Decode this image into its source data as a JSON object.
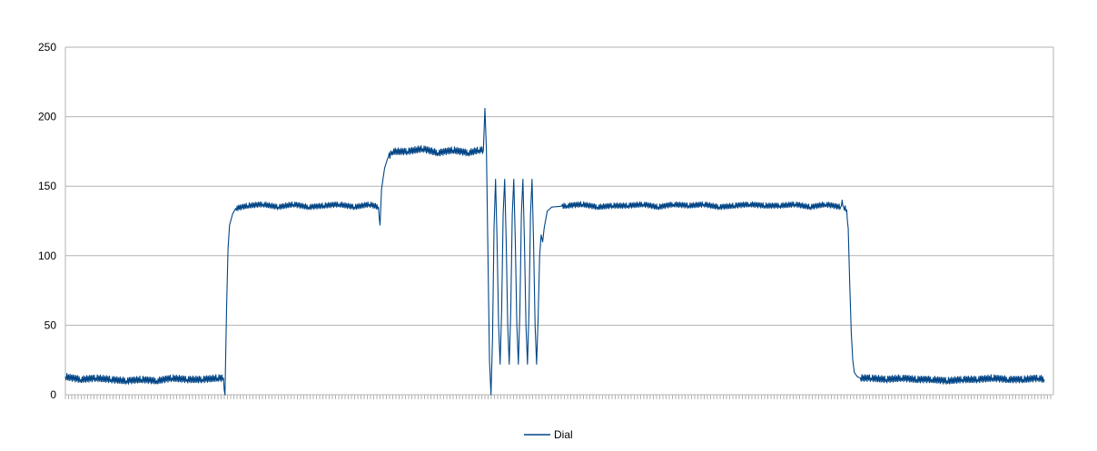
{
  "chart_data": {
    "type": "line",
    "title": "",
    "xlabel": "",
    "ylabel": "",
    "ylim": [
      0,
      250
    ],
    "yticks": [
      0,
      50,
      100,
      150,
      200,
      250
    ],
    "grid": true,
    "legend_position": "bottom",
    "series": [
      {
        "name": "Dial",
        "color": "#004586",
        "segments": [
          {
            "from": 0,
            "to": 105,
            "level": 11,
            "noise": 2.5
          },
          {
            "from": 105,
            "to": 112,
            "ramp_to": 132
          },
          {
            "from": 112,
            "to": 207,
            "level": 136,
            "noise": 2.0
          },
          {
            "from": 207,
            "to": 213,
            "ramp_to": 172
          },
          {
            "from": 213,
            "to": 275,
            "level": 175,
            "noise": 2.5
          },
          {
            "from": 275,
            "to": 281,
            "level": 176
          },
          {
            "from": 281,
            "to": 290,
            "oscillation": [
              206,
              0,
              155,
              22,
              155,
              22,
              155,
              22,
              155,
              22
            ]
          },
          {
            "from": 290,
            "to": 327,
            "oscillation": [
              155,
              22,
              155,
              22,
              135
            ]
          },
          {
            "from": 327,
            "to": 515,
            "level": 136,
            "noise": 2.0
          },
          {
            "from": 515,
            "to": 523,
            "ramp_to": 14
          },
          {
            "from": 523,
            "to": 650,
            "level": 11,
            "noise": 2.5
          }
        ],
        "points": [
          [
            0,
            13
          ],
          [
            10,
            11
          ],
          [
            20,
            12
          ],
          [
            30,
            11
          ],
          [
            40,
            10
          ],
          [
            50,
            11
          ],
          [
            60,
            10
          ],
          [
            70,
            12
          ],
          [
            80,
            11
          ],
          [
            90,
            11
          ],
          [
            100,
            12
          ],
          [
            104,
            12
          ],
          [
            105,
            0
          ],
          [
            106,
            60
          ],
          [
            107,
            105
          ],
          [
            108,
            122
          ],
          [
            110,
            130
          ],
          [
            112,
            134
          ],
          [
            120,
            136
          ],
          [
            130,
            137
          ],
          [
            140,
            135
          ],
          [
            150,
            137
          ],
          [
            160,
            135
          ],
          [
            170,
            136
          ],
          [
            180,
            137
          ],
          [
            190,
            135
          ],
          [
            200,
            137
          ],
          [
            206,
            135
          ],
          [
            207,
            122
          ],
          [
            208,
            148
          ],
          [
            210,
            163
          ],
          [
            212,
            170
          ],
          [
            215,
            175
          ],
          [
            225,
            175
          ],
          [
            235,
            177
          ],
          [
            245,
            174
          ],
          [
            255,
            176
          ],
          [
            265,
            174
          ],
          [
            272,
            176
          ],
          [
            275,
            176
          ],
          [
            276,
            206
          ],
          [
            277,
            176
          ],
          [
            278,
            100
          ],
          [
            279,
            25
          ],
          [
            280,
            0
          ],
          [
            281,
            40
          ],
          [
            282,
            120
          ],
          [
            283,
            155
          ],
          [
            284,
            110
          ],
          [
            285,
            50
          ],
          [
            286,
            22
          ],
          [
            287,
            60
          ],
          [
            288,
            130
          ],
          [
            289,
            155
          ],
          [
            290,
            110
          ],
          [
            291,
            50
          ],
          [
            292,
            22
          ],
          [
            293,
            60
          ],
          [
            294,
            130
          ],
          [
            295,
            155
          ],
          [
            296,
            110
          ],
          [
            297,
            50
          ],
          [
            298,
            22
          ],
          [
            299,
            60
          ],
          [
            300,
            130
          ],
          [
            301,
            155
          ],
          [
            302,
            110
          ],
          [
            303,
            50
          ],
          [
            304,
            22
          ],
          [
            305,
            60
          ],
          [
            306,
            130
          ],
          [
            307,
            155
          ],
          [
            308,
            110
          ],
          [
            309,
            50
          ],
          [
            310,
            22
          ],
          [
            311,
            55
          ],
          [
            312,
            100
          ],
          [
            313,
            115
          ],
          [
            314,
            110
          ],
          [
            315,
            120
          ],
          [
            317,
            132
          ],
          [
            320,
            135
          ],
          [
            330,
            136
          ],
          [
            340,
            137
          ],
          [
            350,
            135
          ],
          [
            360,
            136
          ],
          [
            370,
            136
          ],
          [
            380,
            137
          ],
          [
            390,
            135
          ],
          [
            400,
            137
          ],
          [
            410,
            136
          ],
          [
            420,
            137
          ],
          [
            430,
            135
          ],
          [
            440,
            136
          ],
          [
            450,
            137
          ],
          [
            460,
            136
          ],
          [
            470,
            136
          ],
          [
            480,
            137
          ],
          [
            490,
            135
          ],
          [
            500,
            137
          ],
          [
            510,
            135
          ],
          [
            511,
            140
          ],
          [
            512,
            135
          ],
          [
            514,
            133
          ],
          [
            515,
            120
          ],
          [
            516,
            80
          ],
          [
            517,
            45
          ],
          [
            518,
            25
          ],
          [
            519,
            16
          ],
          [
            521,
            13
          ],
          [
            523,
            12
          ],
          [
            530,
            12
          ],
          [
            540,
            11
          ],
          [
            550,
            12
          ],
          [
            560,
            11
          ],
          [
            570,
            11
          ],
          [
            580,
            10
          ],
          [
            590,
            11
          ],
          [
            600,
            11
          ],
          [
            610,
            12
          ],
          [
            620,
            11
          ],
          [
            630,
            11
          ],
          [
            640,
            12
          ],
          [
            644,
            11
          ]
        ]
      }
    ],
    "x_count": 650
  }
}
